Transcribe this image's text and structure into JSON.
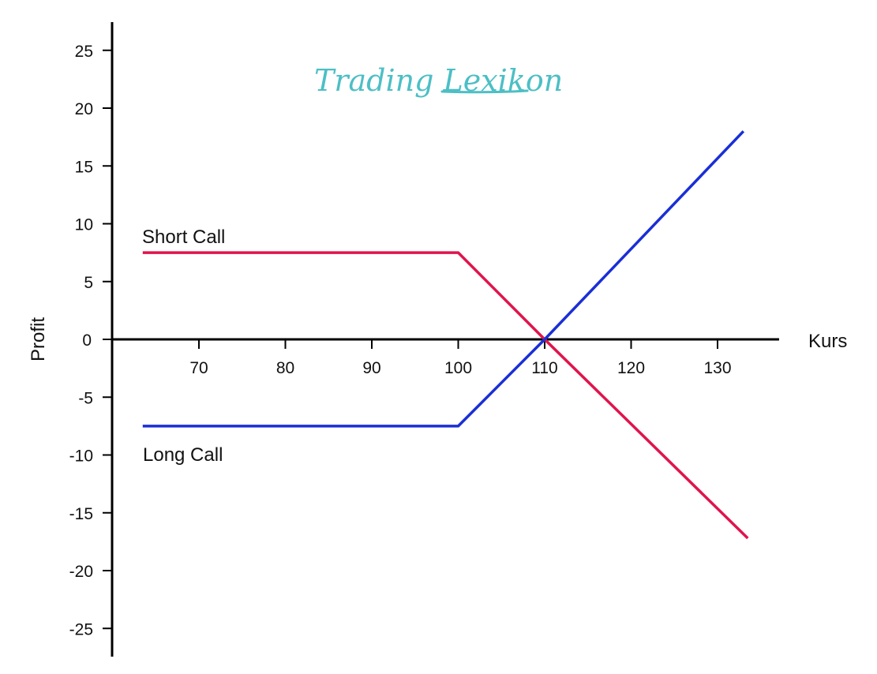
{
  "chart_data": {
    "type": "line",
    "xlabel": "Kurs",
    "ylabel": "Profit",
    "xlim": [
      60,
      137
    ],
    "ylim": [
      -27,
      27
    ],
    "x_ticks": [
      70,
      80,
      90,
      100,
      110,
      120,
      130
    ],
    "y_ticks": [
      25,
      20,
      15,
      10,
      5,
      0,
      -5,
      -10,
      -15,
      -20,
      -25
    ],
    "grid": false,
    "series": [
      {
        "name": "Short Call",
        "color": "#e0144c",
        "x": [
          63.5,
          100,
          110,
          133.5
        ],
        "y": [
          7.5,
          7.5,
          0,
          -17.2
        ]
      },
      {
        "name": "Long Call",
        "color": "#1a2fd6",
        "x": [
          63.5,
          100,
          110,
          133
        ],
        "y": [
          -7.5,
          -7.5,
          0,
          18
        ]
      }
    ]
  },
  "watermark": {
    "text": "Trading Lexikon",
    "color": "#4cbfc5"
  }
}
